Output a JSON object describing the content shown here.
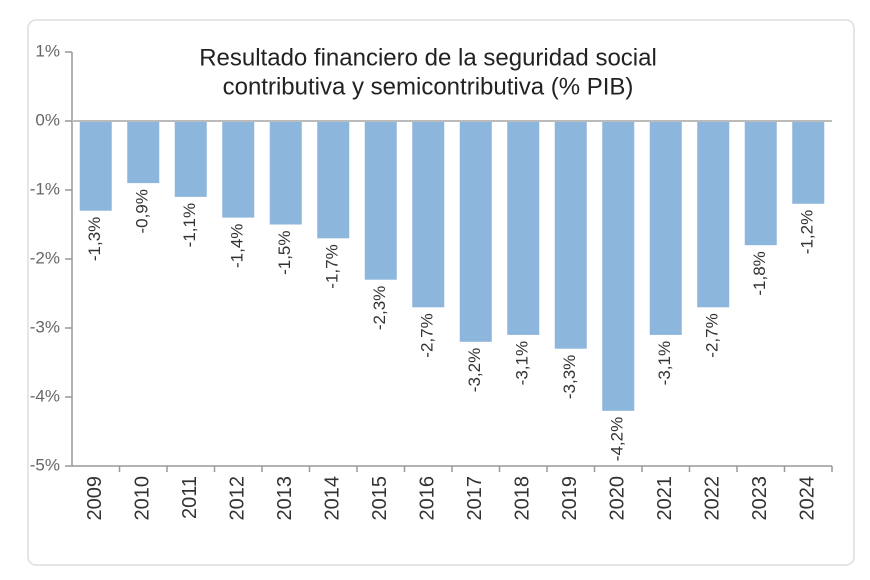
{
  "chart_data": {
    "type": "bar",
    "title": [
      "Resultado financiero de la seguridad social",
      "contributiva y semicontributiva (% PIB)"
    ],
    "categories": [
      "2009",
      "2010",
      "2011",
      "2012",
      "2013",
      "2014",
      "2015",
      "2016",
      "2017",
      "2018",
      "2019",
      "2020",
      "2021",
      "2022",
      "2023",
      "2024"
    ],
    "values": [
      -1.3,
      -0.9,
      -1.1,
      -1.4,
      -1.5,
      -1.7,
      -2.3,
      -2.7,
      -3.2,
      -3.1,
      -3.3,
      -4.2,
      -3.1,
      -2.7,
      -1.8,
      -1.2
    ],
    "value_labels": [
      "-1,3%",
      "-0,9%",
      "-1,1%",
      "-1,4%",
      "-1,5%",
      "-1,7%",
      "-2,3%",
      "-2,7%",
      "-3,2%",
      "-3,1%",
      "-3,3%",
      "-4,2%",
      "-3,1%",
      "-2,7%",
      "-1,8%",
      "-1,2%"
    ],
    "color": "#8db6dc",
    "ylim": [
      -5,
      1
    ],
    "yticks": [
      {
        "value": -5,
        "label": "-5%"
      },
      {
        "value": -4,
        "label": "-4%"
      },
      {
        "value": -3,
        "label": "-3%"
      },
      {
        "value": -2,
        "label": "-2%"
      },
      {
        "value": -1,
        "label": "-1%"
      },
      {
        "value": 0,
        "label": "0%"
      },
      {
        "value": 1,
        "label": "1%"
      }
    ],
    "grid": false
  }
}
